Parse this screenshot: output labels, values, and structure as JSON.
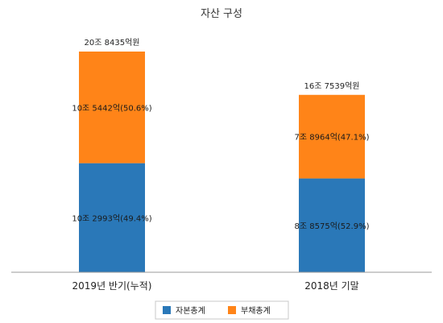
{
  "chart_data": {
    "type": "bar",
    "stacked": true,
    "title": "자산 구성",
    "categories": [
      "2019년 반기(누적)",
      "2018년 기말"
    ],
    "totals": [
      20.8435,
      16.7539
    ],
    "total_labels": [
      "20조 8435억원",
      "16조 7539억원"
    ],
    "series": [
      {
        "name": "자본총계",
        "color": "#2a78b8",
        "values": [
          10.2993,
          8.8575
        ],
        "labels": [
          "10조 2993억(49.4%)",
          "8조 8575억(52.9%)"
        ]
      },
      {
        "name": "부채총계",
        "color": "#ff8418",
        "values": [
          10.5442,
          7.8964
        ],
        "labels": [
          "10조 5442억(50.6%)",
          "7조 8964억(47.1%)"
        ]
      }
    ],
    "ylim": [
      0,
      24.1
    ],
    "grid": false,
    "legend_position": "bottom"
  }
}
